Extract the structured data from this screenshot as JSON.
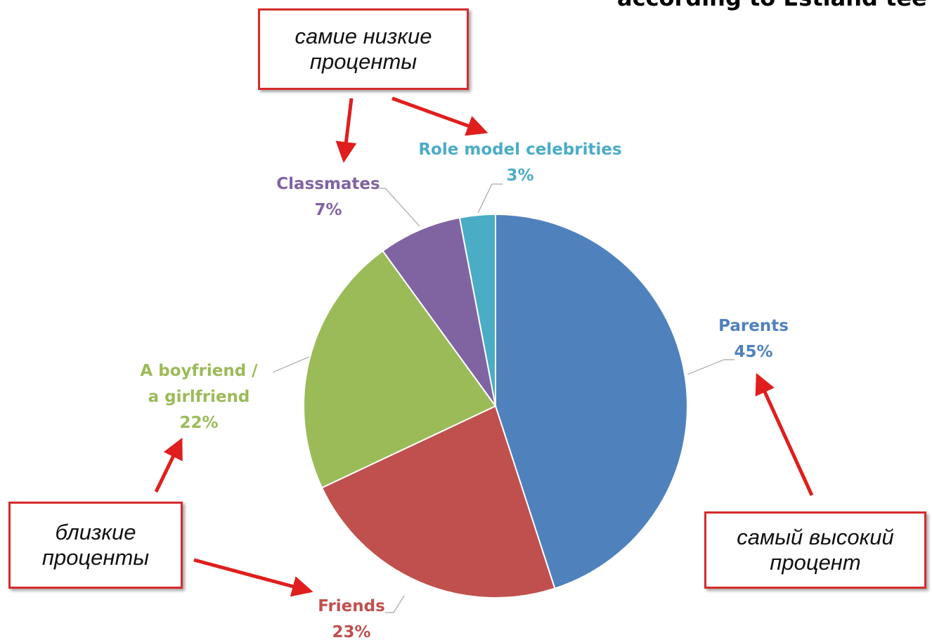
{
  "chart_data": {
    "type": "pie",
    "title": "according to Estland tee",
    "categories": [
      "Parents",
      "Friends",
      "A boyfriend / a girlfriend",
      "Classmates",
      "Role model celebrities"
    ],
    "values": [
      45,
      23,
      22,
      7,
      3
    ],
    "value_labels": [
      "45%",
      "23%",
      "22%",
      "7%",
      "3%"
    ],
    "colors": [
      "#4f81bd",
      "#c0504d",
      "#9bbb59",
      "#8064a2",
      "#4bacc6"
    ],
    "annotations": [
      "самие низкие проценты",
      "близкие проценты",
      "самый высокий процент"
    ]
  }
}
